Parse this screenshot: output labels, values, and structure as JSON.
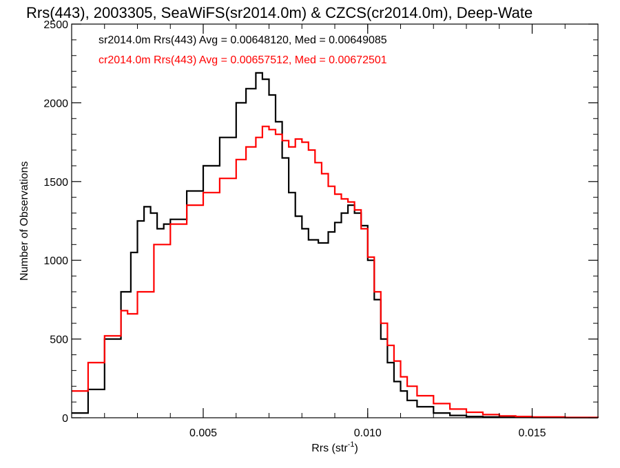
{
  "chart_data": {
    "type": "line",
    "step": true,
    "title": "Rrs(443), 2003305, SeaWiFS(sr2014.0m) & CZCS(cr2014.0m), Deep-Wate",
    "xlabel": "Rrs (str",
    "xlabel_superscript": "-1",
    "xlabel_suffix": ")",
    "ylabel": "Number of Observations",
    "xlim": [
      0.001,
      0.017
    ],
    "ylim": [
      0,
      2500
    ],
    "xticks": [
      0.005,
      0.01,
      0.015
    ],
    "xtick_labels": [
      "0.005",
      "0.010",
      "0.015"
    ],
    "yticks": [
      0,
      500,
      1000,
      1500,
      2000,
      2500
    ],
    "ytick_labels": [
      "0",
      "500",
      "1000",
      "1500",
      "2000",
      "2500"
    ],
    "grid": false,
    "legend_position": "top-left",
    "series": [
      {
        "name": "sr2014.0m",
        "color": "#000000",
        "label": "sr2014.0m Rrs(443) Avg = 0.00648120, Med = 0.00649085",
        "x": [
          0.001,
          0.0015,
          0.002,
          0.0025,
          0.0028,
          0.003,
          0.0032,
          0.0034,
          0.0036,
          0.0038,
          0.004,
          0.0045,
          0.005,
          0.0055,
          0.006,
          0.0063,
          0.0066,
          0.0068,
          0.007,
          0.0072,
          0.0074,
          0.0076,
          0.0078,
          0.008,
          0.0082,
          0.0085,
          0.0088,
          0.009,
          0.0092,
          0.0094,
          0.0096,
          0.0098,
          0.01,
          0.0102,
          0.0104,
          0.0106,
          0.0108,
          0.011,
          0.0112,
          0.0115,
          0.012,
          0.0125,
          0.013,
          0.0135,
          0.014,
          0.015,
          0.016,
          0.017
        ],
        "y": [
          30,
          180,
          500,
          800,
          1050,
          1250,
          1340,
          1300,
          1200,
          1230,
          1260,
          1440,
          1600,
          1780,
          2000,
          2090,
          2190,
          2150,
          2050,
          1880,
          1650,
          1430,
          1280,
          1200,
          1130,
          1110,
          1180,
          1240,
          1300,
          1350,
          1300,
          1220,
          1000,
          750,
          500,
          350,
          230,
          170,
          110,
          70,
          30,
          15,
          8,
          5,
          3,
          2,
          1,
          0
        ]
      },
      {
        "name": "cr2014.0m",
        "color": "#ff0000",
        "label": "cr2014.0m Rrs(443) Avg = 0.00657512, Med = 0.00672501",
        "x": [
          0.001,
          0.0015,
          0.002,
          0.0025,
          0.0027,
          0.003,
          0.0035,
          0.004,
          0.0045,
          0.005,
          0.0055,
          0.006,
          0.0063,
          0.0066,
          0.0068,
          0.007,
          0.0072,
          0.0074,
          0.0076,
          0.0078,
          0.008,
          0.0082,
          0.0084,
          0.0086,
          0.0088,
          0.009,
          0.0092,
          0.0094,
          0.0096,
          0.0098,
          0.01,
          0.0102,
          0.0104,
          0.0106,
          0.0108,
          0.011,
          0.0112,
          0.0115,
          0.012,
          0.0125,
          0.013,
          0.0135,
          0.014,
          0.0145,
          0.015,
          0.016,
          0.017
        ],
        "y": [
          170,
          350,
          520,
          680,
          660,
          800,
          1100,
          1230,
          1350,
          1430,
          1520,
          1640,
          1720,
          1780,
          1850,
          1830,
          1800,
          1760,
          1720,
          1770,
          1750,
          1700,
          1620,
          1550,
          1470,
          1420,
          1390,
          1370,
          1320,
          1200,
          1020,
          800,
          600,
          460,
          360,
          260,
          200,
          140,
          90,
          55,
          35,
          20,
          12,
          8,
          5,
          2,
          1
        ]
      }
    ]
  }
}
